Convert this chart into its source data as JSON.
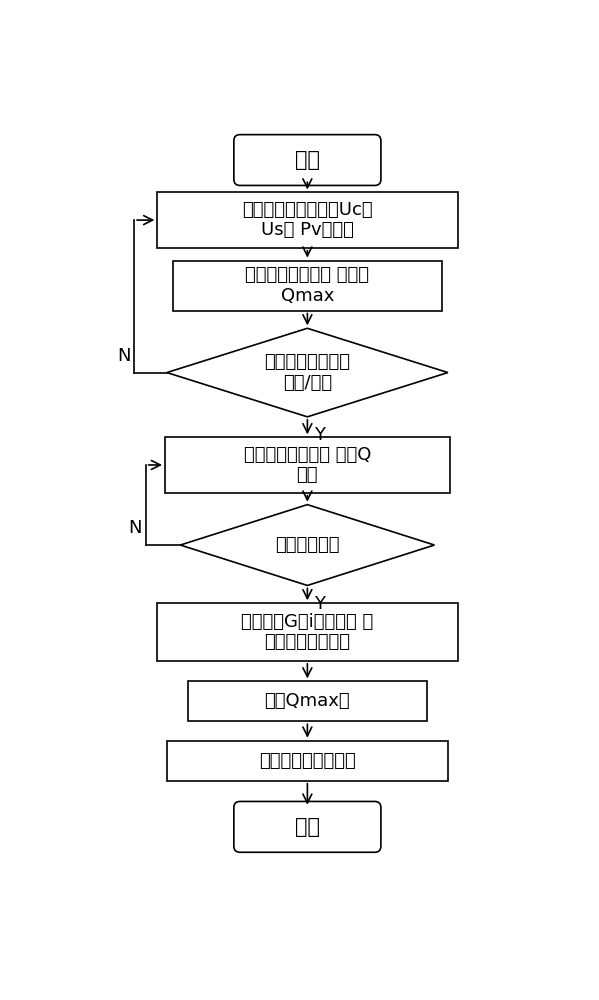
{
  "bg_color": "#ffffff",
  "border_color": "#000000",
  "text_color": "#000000",
  "arrow_color": "#000000",
  "figsize": [
    5.99,
    10.0
  ],
  "dpi": 100,
  "start_text": "开始",
  "box1_text1": "数据库采样电池参数Uc、",
  "box1_text2": "Us、 Pv等数据",
  "box2_text1": "获取数据库数据、 及设定",
  "box2_text2": "Qmax",
  "dia1_text1": "判断是否发生功率",
  "dia1_text2": "缺额/超出",
  "box3_text1": "计算有功上限值、 进行Q",
  "box3_text2": "控制",
  "dia2_text": "频率是否越限",
  "box4_text1": "输入数据G（i）求解、 再",
  "box4_text2": "进行有功功率控制",
  "box5_text": "更新Qmax值",
  "box6_text": "再进行无功功率控制",
  "end_text": "结束",
  "N_label": "N",
  "Y_label": "Y"
}
